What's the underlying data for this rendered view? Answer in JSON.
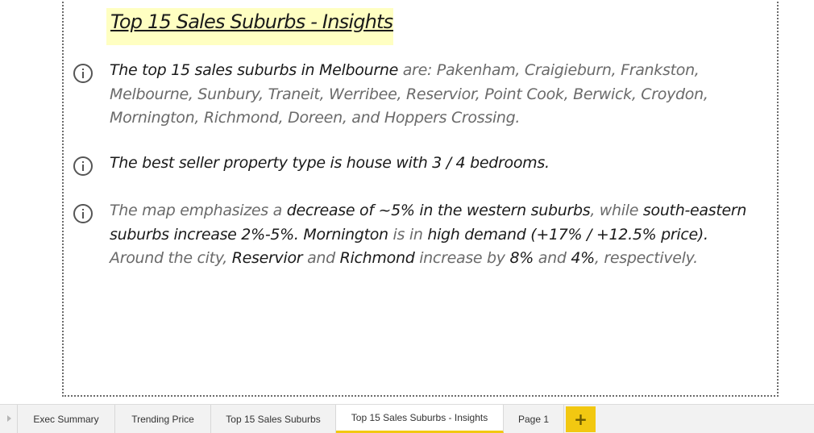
{
  "title": "Top 15 Sales Suburbs - Insights:",
  "insights": [
    {
      "icon": "info-icon",
      "segments": [
        {
          "text": "The top 15 sales suburbs in Melbourne",
          "emphasis": true
        },
        {
          "text": " are: Pakenham, Craigieburn, Frankston,",
          "emphasis": false
        },
        {
          "text": "\nMelbourne, Sunbury, Traneit, Werribee, Reservior, Point Cook, Berwick, Croydon,",
          "emphasis": false
        },
        {
          "text": "\nMornington, Richmond, Doreen, and Hoppers Crossing.",
          "emphasis": false
        }
      ]
    },
    {
      "icon": "info-icon",
      "segments": [
        {
          "text": "The best seller property type is house with 3 / 4 bedrooms.",
          "emphasis": true
        }
      ]
    },
    {
      "icon": "info-icon",
      "segments": [
        {
          "text": "The map emphasizes a ",
          "emphasis": false
        },
        {
          "text": "decrease of ~5% in the western suburbs",
          "emphasis": true
        },
        {
          "text": ", while ",
          "emphasis": false
        },
        {
          "text": "south-eastern",
          "emphasis": true
        },
        {
          "text": "\nsuburbs increase 2%-5%. Mornington",
          "emphasis": true
        },
        {
          "text": " is in ",
          "emphasis": false
        },
        {
          "text": "high demand (+17% / +12.5% price).",
          "emphasis": true
        },
        {
          "text": "\nAround the city, ",
          "emphasis": false
        },
        {
          "text": "Reservior",
          "emphasis": true
        },
        {
          "text": " and ",
          "emphasis": false
        },
        {
          "text": "Richmond",
          "emphasis": true
        },
        {
          "text": " increase by ",
          "emphasis": false
        },
        {
          "text": "8%",
          "emphasis": true
        },
        {
          "text": " and ",
          "emphasis": false
        },
        {
          "text": "4%",
          "emphasis": true
        },
        {
          "text": ", respectively.",
          "emphasis": false
        }
      ]
    }
  ],
  "tabs": [
    {
      "label": "Exec Summary",
      "active": false
    },
    {
      "label": "Trending Price",
      "active": false
    },
    {
      "label": "Top 15 Sales Suburbs",
      "active": false
    },
    {
      "label": "Top 15 Sales Suburbs - Insights",
      "active": true
    },
    {
      "label": "Page 1",
      "active": false
    }
  ],
  "add_tab_label": "+",
  "colors": {
    "accent": "#f2c811",
    "title_highlight": "#ffffc2",
    "emphasis_text": "#1a1a1a",
    "body_text": "#6a6a6a"
  }
}
